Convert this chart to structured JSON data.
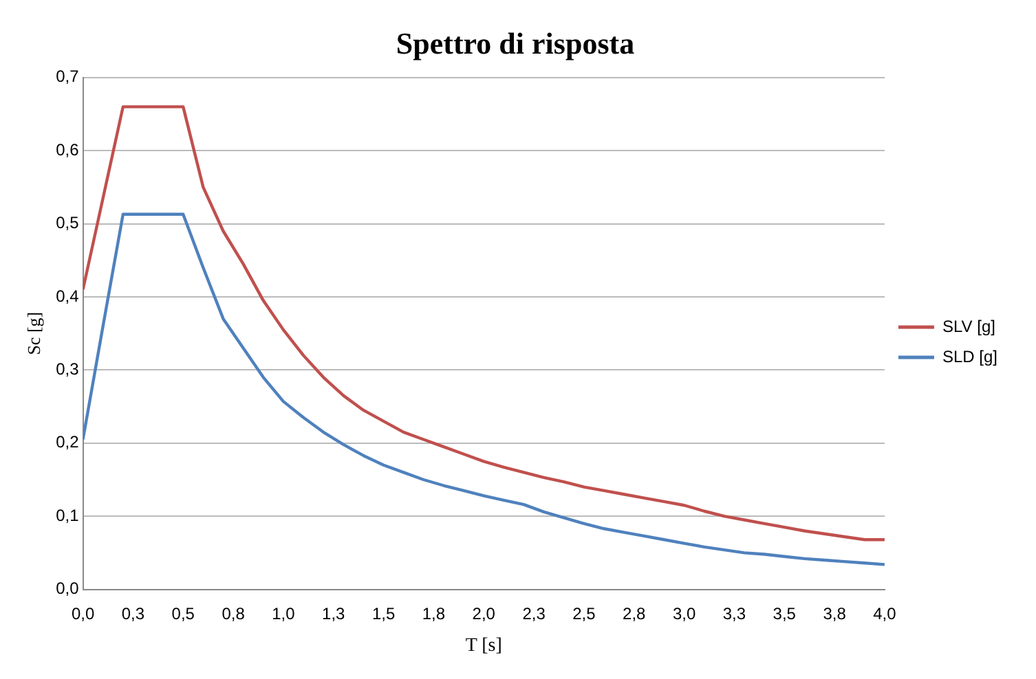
{
  "chart_data": {
    "type": "line",
    "title": "Spettro di risposta",
    "xlabel": "T [s]",
    "ylabel": "Sc [g]",
    "x": [
      0,
      0.1,
      0.2,
      0.3,
      0.4,
      0.5,
      0.6,
      0.7,
      0.8,
      0.9,
      1.0,
      1.1,
      1.2,
      1.3,
      1.4,
      1.5,
      1.6,
      1.7,
      1.8,
      1.9,
      2.0,
      2.1,
      2.2,
      2.3,
      2.4,
      2.5,
      2.6,
      2.7,
      2.8,
      2.9,
      3.0,
      3.1,
      3.2,
      3.3,
      3.4,
      3.5,
      3.6,
      3.7,
      3.8,
      3.9,
      4.0
    ],
    "series": [
      {
        "name": "SLV [g]",
        "color": "#c0504d",
        "values": [
          0.41,
          0.535,
          0.66,
          0.66,
          0.66,
          0.66,
          0.55,
          0.49,
          0.445,
          0.395,
          0.355,
          0.32,
          0.29,
          0.265,
          0.245,
          0.23,
          0.215,
          0.205,
          0.195,
          0.185,
          0.175,
          0.167,
          0.16,
          0.153,
          0.147,
          0.14,
          0.135,
          0.13,
          0.125,
          0.12,
          0.115,
          0.107,
          0.1,
          0.095,
          0.09,
          0.085,
          0.08,
          0.076,
          0.072,
          0.068,
          0.068
        ]
      },
      {
        "name": "SLD [g]",
        "color": "#4f81bd",
        "values": [
          0.205,
          0.36,
          0.513,
          0.513,
          0.513,
          0.513,
          0.44,
          0.37,
          0.33,
          0.29,
          0.257,
          0.235,
          0.215,
          0.198,
          0.183,
          0.17,
          0.16,
          0.15,
          0.142,
          0.135,
          0.128,
          0.122,
          0.116,
          0.106,
          0.098,
          0.09,
          0.083,
          0.078,
          0.073,
          0.068,
          0.063,
          0.058,
          0.054,
          0.05,
          0.048,
          0.045,
          0.042,
          0.04,
          0.038,
          0.036,
          0.034
        ]
      }
    ],
    "xlim": [
      0,
      4
    ],
    "xticks": [
      {
        "value": 0,
        "label": "0,0"
      },
      {
        "value": 0.25,
        "label": "0,3"
      },
      {
        "value": 0.5,
        "label": "0,5"
      },
      {
        "value": 0.75,
        "label": "0,8"
      },
      {
        "value": 1,
        "label": "1,0"
      },
      {
        "value": 1.25,
        "label": "1,3"
      },
      {
        "value": 1.5,
        "label": "1,5"
      },
      {
        "value": 1.75,
        "label": "1,8"
      },
      {
        "value": 2,
        "label": "2,0"
      },
      {
        "value": 2.25,
        "label": "2,3"
      },
      {
        "value": 2.5,
        "label": "2,5"
      },
      {
        "value": 2.75,
        "label": "2,8"
      },
      {
        "value": 3,
        "label": "3,0"
      },
      {
        "value": 3.25,
        "label": "3,3"
      },
      {
        "value": 3.5,
        "label": "3,5"
      },
      {
        "value": 3.75,
        "label": "3,8"
      },
      {
        "value": 4,
        "label": "4,0"
      }
    ],
    "ylim": [
      0,
      0.7
    ],
    "yticks": [
      {
        "value": 0,
        "label": "0,0"
      },
      {
        "value": 0.1,
        "label": "0,1"
      },
      {
        "value": 0.2,
        "label": "0,2"
      },
      {
        "value": 0.3,
        "label": "0,3"
      },
      {
        "value": 0.4,
        "label": "0,4"
      },
      {
        "value": 0.5,
        "label": "0,5"
      },
      {
        "value": 0.6,
        "label": "0,6"
      },
      {
        "value": 0.7,
        "label": "0,7"
      }
    ],
    "grid": "y",
    "legend": "right",
    "marker": "none",
    "line_style": "solid"
  }
}
